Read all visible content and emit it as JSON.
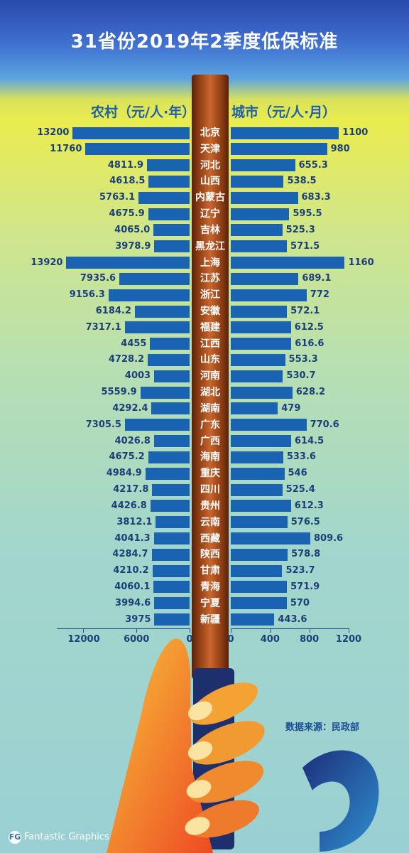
{
  "title": "31省份2019年2季度低保标准",
  "source": "数据来源：民政部",
  "brand": "Fantastic Graphics",
  "chart_data": [
    {
      "type": "bar",
      "title": "农村（元/人·年）",
      "orientation": "horizontal",
      "direction": "right-to-left",
      "categories": [
        "北京",
        "天津",
        "河北",
        "山西",
        "内蒙古",
        "辽宁",
        "吉林",
        "黑龙江",
        "上海",
        "江苏",
        "浙江",
        "安徽",
        "福建",
        "江西",
        "山东",
        "河南",
        "湖北",
        "湖南",
        "广东",
        "广西",
        "海南",
        "重庆",
        "四川",
        "贵州",
        "云南",
        "西藏",
        "陕西",
        "甘肃",
        "青海",
        "宁夏",
        "新疆"
      ],
      "values": [
        13200,
        11760,
        4811.9,
        4618.5,
        5763.1,
        4675.9,
        4065.0,
        3978.9,
        13920,
        7935.6,
        9156.3,
        6184.2,
        7317.1,
        4455,
        4728.2,
        4003,
        5559.9,
        4292.4,
        7305.5,
        4026.8,
        4675.2,
        4984.9,
        4217.8,
        4426.8,
        3812.1,
        4041.3,
        4284.7,
        4210.2,
        4060.1,
        3994.6,
        3975
      ],
      "value_labels": [
        "13200",
        "11760",
        "4811.9",
        "4618.5",
        "5763.1",
        "4675.9",
        "4065.0",
        "3978.9",
        "13920",
        "7935.6",
        "9156.3",
        "6184.2",
        "7317.1",
        "4455",
        "4728.2",
        "4003",
        "5559.9",
        "4292.4",
        "7305.5",
        "4026.8",
        "4675.2",
        "4984.9",
        "4217.8",
        "4426.8",
        "3812.1",
        "4041.3",
        "4284.7",
        "4210.2",
        "4060.1",
        "3994.6",
        "3975"
      ],
      "xlim": [
        0,
        15000
      ],
      "ticks": [
        "12000",
        "6000",
        "0"
      ],
      "color": "#1a63b2"
    },
    {
      "type": "bar",
      "title": "城市（元/人·月）",
      "orientation": "horizontal",
      "categories": [
        "北京",
        "天津",
        "河北",
        "山西",
        "内蒙古",
        "辽宁",
        "吉林",
        "黑龙江",
        "上海",
        "江苏",
        "浙江",
        "安徽",
        "福建",
        "江西",
        "山东",
        "河南",
        "湖北",
        "湖南",
        "广东",
        "广西",
        "海南",
        "重庆",
        "四川",
        "贵州",
        "云南",
        "西藏",
        "陕西",
        "甘肃",
        "青海",
        "宁夏",
        "新疆"
      ],
      "values": [
        1100,
        980,
        655.3,
        538.5,
        683.3,
        595.5,
        525.3,
        571.5,
        1160,
        689.1,
        772,
        572.1,
        612.5,
        616.6,
        553.3,
        530.7,
        628.2,
        479,
        770.6,
        614.5,
        533.6,
        546,
        525.4,
        612.3,
        576.5,
        809.6,
        578.8,
        523.7,
        571.9,
        570,
        443.6
      ],
      "value_labels": [
        "1100",
        "980",
        "655.3",
        "538.5",
        "683.3",
        "595.5",
        "525.3",
        "571.5",
        "1160",
        "689.1",
        "772",
        "572.1",
        "612.5",
        "616.6",
        "553.3",
        "530.7",
        "628.2",
        "479",
        "770.6",
        "614.5",
        "533.6",
        "546",
        "525.4",
        "612.3",
        "576.5",
        "809.6",
        "578.8",
        "523.7",
        "571.9",
        "570",
        "443.6"
      ],
      "xlim": [
        0,
        1200
      ],
      "ticks": [
        "0",
        "400",
        "800",
        "1200"
      ],
      "color": "#1a63b2"
    }
  ]
}
